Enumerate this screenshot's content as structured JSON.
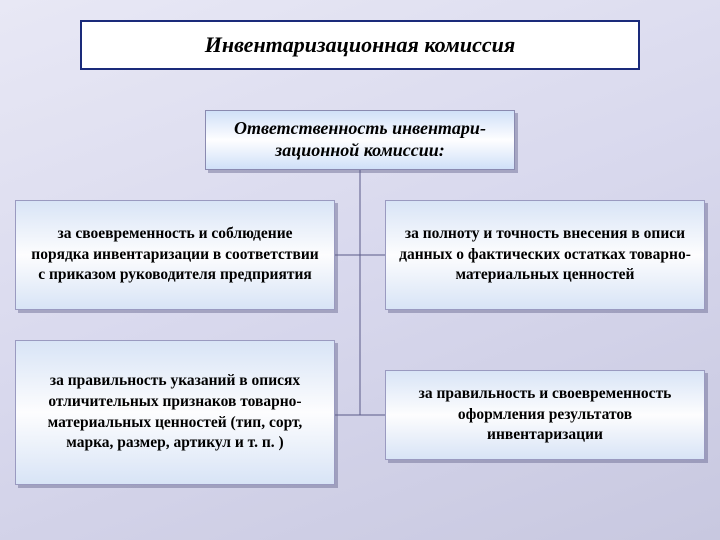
{
  "type": "flowchart",
  "background_gradient": [
    "#e8e8f5",
    "#d8d8ed",
    "#c8c8e0"
  ],
  "box_border_color": "#1a2a7a",
  "box_gradient": [
    "#d8e4f6",
    "#fdfdfe",
    "#d8e4f6"
  ],
  "shadow_color": "rgba(100,100,140,0.45)",
  "connector_color": "#5a5a88",
  "title": {
    "text": "Инвентаризационная комиссия",
    "fontsize": 22,
    "font_style": "bold italic"
  },
  "subtitle": {
    "text": "Ответственность инвентари-\nзационной комиссии:",
    "fontsize": 18,
    "font_style": "bold italic"
  },
  "leaves": {
    "tl": "за своевременность и соблюдение порядка инвентаризации в соответствии с приказом руководителя предприятия",
    "tr": "за полноту и точность внесения в описи данных о фактических остатках товарно-материальных ценностей",
    "bl": "за правильность указаний в описях отличительных признаков товарно-материальных ценностей (тип, сорт, марка, размер, артикул и т. п. )",
    "br": "за правильность и своевременность оформления результатов инвентаризации"
  },
  "leaf_fontsize": 15.5,
  "leaf_font_style": "bold"
}
